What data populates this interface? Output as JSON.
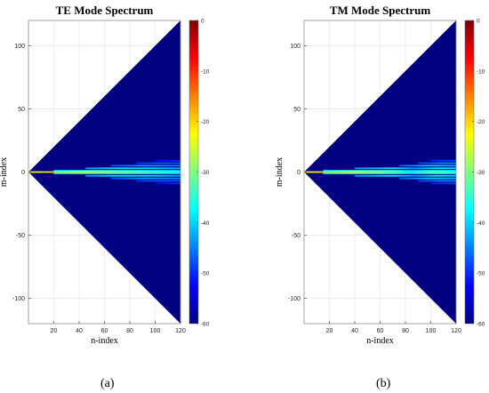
{
  "figure": {
    "panels": [
      {
        "caption": "(a)"
      },
      {
        "caption": "(b)"
      }
    ]
  },
  "chart_data": [
    {
      "type": "heatmap",
      "title": "TE Mode Spectrum",
      "xlabel": "n-index",
      "ylabel": "m-index",
      "xlim": [
        0,
        120
      ],
      "ylim": [
        -120,
        120
      ],
      "xticks": [
        20,
        40,
        60,
        80,
        100,
        120
      ],
      "yticks": [
        100,
        50,
        0,
        -50,
        -100
      ],
      "grid": true,
      "colormap": "jet",
      "background_value": -60,
      "domain": "triangular region |m| <= n",
      "colorbar": {
        "range": [
          -60,
          0
        ],
        "ticks": [
          0,
          -10,
          -20,
          -30,
          -40,
          -50,
          -60
        ]
      },
      "series": [
        {
          "m": 0,
          "n_range": [
            0,
            120
          ],
          "values": [
            [
              0,
              -22
            ],
            [
              20,
              -21
            ],
            [
              40,
              -23
            ],
            [
              60,
              -27
            ],
            [
              80,
              -30
            ],
            [
              100,
              -33
            ],
            [
              120,
              -36
            ]
          ]
        },
        {
          "m": 1,
          "n_range": [
            20,
            120
          ],
          "values": [
            [
              20,
              -38
            ],
            [
              50,
              -34
            ],
            [
              80,
              -35
            ],
            [
              120,
              -39
            ]
          ]
        },
        {
          "m": -1,
          "n_range": [
            20,
            120
          ],
          "values": [
            [
              20,
              -38
            ],
            [
              50,
              -34
            ],
            [
              80,
              -35
            ],
            [
              120,
              -39
            ]
          ]
        },
        {
          "m": 3,
          "n_range": [
            45,
            120
          ],
          "values": [
            [
              45,
              -44
            ],
            [
              70,
              -39
            ],
            [
              100,
              -40
            ],
            [
              120,
              -43
            ]
          ]
        },
        {
          "m": -3,
          "n_range": [
            45,
            120
          ],
          "values": [
            [
              45,
              -44
            ],
            [
              70,
              -39
            ],
            [
              100,
              -40
            ],
            [
              120,
              -43
            ]
          ]
        },
        {
          "m": 5,
          "n_range": [
            65,
            120
          ],
          "values": [
            [
              65,
              -48
            ],
            [
              90,
              -43
            ],
            [
              120,
              -45
            ]
          ]
        },
        {
          "m": -5,
          "n_range": [
            65,
            120
          ],
          "values": [
            [
              65,
              -48
            ],
            [
              90,
              -43
            ],
            [
              120,
              -45
            ]
          ]
        },
        {
          "m": 7,
          "n_range": [
            85,
            120
          ],
          "values": [
            [
              85,
              -50
            ],
            [
              105,
              -47
            ],
            [
              120,
              -48
            ]
          ]
        },
        {
          "m": -7,
          "n_range": [
            85,
            120
          ],
          "values": [
            [
              85,
              -50
            ],
            [
              105,
              -47
            ],
            [
              120,
              -48
            ]
          ]
        },
        {
          "m": 9,
          "n_range": [
            100,
            120
          ],
          "values": [
            [
              100,
              -52
            ],
            [
              120,
              -50
            ]
          ]
        },
        {
          "m": -9,
          "n_range": [
            100,
            120
          ],
          "values": [
            [
              100,
              -52
            ],
            [
              120,
              -50
            ]
          ]
        }
      ]
    },
    {
      "type": "heatmap",
      "title": "TM Mode Spectrum",
      "xlabel": "n-index",
      "ylabel": "m-index",
      "xlim": [
        0,
        120
      ],
      "ylim": [
        -120,
        120
      ],
      "xticks": [
        20,
        40,
        60,
        80,
        100,
        120
      ],
      "yticks": [
        100,
        50,
        0,
        -50,
        -100
      ],
      "grid": true,
      "colormap": "jet",
      "background_value": -60,
      "domain": "triangular region |m| <= n",
      "colorbar": {
        "range": [
          -60,
          0
        ],
        "ticks": [
          0,
          -10,
          -20,
          -30,
          -40,
          -50,
          -60
        ]
      },
      "series": [
        {
          "m": 0,
          "n_range": [
            0,
            120
          ],
          "values": [
            [
              0,
              -22
            ],
            [
              20,
              -21
            ],
            [
              40,
              -25
            ],
            [
              60,
              -30
            ],
            [
              85,
              -37
            ],
            [
              100,
              -33
            ],
            [
              120,
              -34
            ]
          ]
        },
        {
          "m": 1,
          "n_range": [
            15,
            120
          ],
          "values": [
            [
              15,
              -38
            ],
            [
              40,
              -33
            ],
            [
              70,
              -34
            ],
            [
              85,
              -40
            ],
            [
              100,
              -35
            ],
            [
              120,
              -37
            ]
          ]
        },
        {
          "m": -1,
          "n_range": [
            15,
            120
          ],
          "values": [
            [
              15,
              -38
            ],
            [
              40,
              -33
            ],
            [
              70,
              -34
            ],
            [
              85,
              -40
            ],
            [
              100,
              -35
            ],
            [
              120,
              -37
            ]
          ]
        },
        {
          "m": 3,
          "n_range": [
            40,
            120
          ],
          "values": [
            [
              40,
              -44
            ],
            [
              70,
              -39
            ],
            [
              88,
              -44
            ],
            [
              105,
              -38
            ],
            [
              120,
              -40
            ]
          ]
        },
        {
          "m": -3,
          "n_range": [
            40,
            120
          ],
          "values": [
            [
              40,
              -44
            ],
            [
              70,
              -39
            ],
            [
              88,
              -44
            ],
            [
              105,
              -38
            ],
            [
              120,
              -40
            ]
          ]
        },
        {
          "m": 5,
          "n_range": [
            75,
            120
          ],
          "values": [
            [
              75,
              -47
            ],
            [
              100,
              -40
            ],
            [
              120,
              -42
            ]
          ]
        },
        {
          "m": -5,
          "n_range": [
            75,
            120
          ],
          "values": [
            [
              75,
              -47
            ],
            [
              100,
              -40
            ],
            [
              120,
              -42
            ]
          ]
        },
        {
          "m": 7,
          "n_range": [
            90,
            120
          ],
          "values": [
            [
              90,
              -49
            ],
            [
              110,
              -44
            ],
            [
              120,
              -45
            ]
          ]
        },
        {
          "m": -7,
          "n_range": [
            90,
            120
          ],
          "values": [
            [
              90,
              -49
            ],
            [
              110,
              -44
            ],
            [
              120,
              -45
            ]
          ]
        },
        {
          "m": 9,
          "n_range": [
            100,
            120
          ],
          "values": [
            [
              100,
              -51
            ],
            [
              120,
              -48
            ]
          ]
        },
        {
          "m": -9,
          "n_range": [
            100,
            120
          ],
          "values": [
            [
              100,
              -51
            ],
            [
              120,
              -48
            ]
          ]
        }
      ]
    }
  ]
}
